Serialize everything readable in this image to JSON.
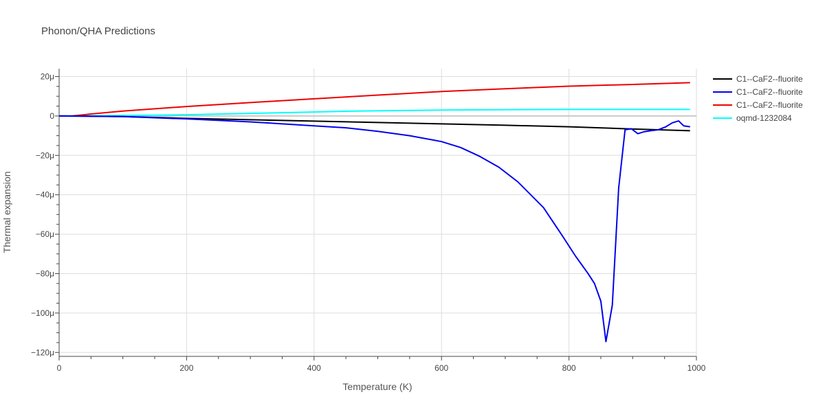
{
  "chart_data": {
    "type": "line",
    "title": "Phonon/QHA Predictions",
    "xlabel": "Temperature (K)",
    "ylabel": "Thermal expansion",
    "xlim": [
      0,
      1000
    ],
    "ylim": [
      -122,
      24
    ],
    "x_ticks": [
      0,
      200,
      400,
      600,
      800,
      1000
    ],
    "x_tick_labels": [
      "0",
      "200",
      "400",
      "600",
      "800",
      "1000"
    ],
    "y_ticks": [
      20,
      0,
      -20,
      -40,
      -60,
      -80,
      -100,
      -120
    ],
    "y_tick_labels": [
      "20μ",
      "0",
      "−20μ",
      "−40μ",
      "−60μ",
      "−80μ",
      "−100μ",
      "−120μ"
    ],
    "grid": true,
    "legend_position": "top-right outside",
    "series": [
      {
        "name": "C1--CaF2--fluorite",
        "color": "#000000",
        "x": [
          0,
          100,
          200,
          300,
          400,
          500,
          600,
          700,
          800,
          900,
          990
        ],
        "y": [
          0,
          -0.3,
          -1.2,
          -1.9,
          -2.6,
          -3.3,
          -4.0,
          -4.7,
          -5.5,
          -6.6,
          -7.5
        ]
      },
      {
        "name": "C1--CaF2--fluorite",
        "color": "#0000ee",
        "x": [
          0,
          100,
          200,
          300,
          400,
          450,
          500,
          550,
          600,
          630,
          660,
          690,
          720,
          760,
          790,
          810,
          830,
          840,
          850,
          858,
          868,
          878,
          888,
          898,
          908,
          918,
          928,
          940,
          952,
          962,
          972,
          980,
          990
        ],
        "y": [
          0,
          -0.3,
          -1.5,
          -3.0,
          -5.0,
          -6.0,
          -7.8,
          -10.0,
          -13.0,
          -16.0,
          -20.5,
          -26.0,
          -33.5,
          -46.5,
          -61.0,
          -71.0,
          -80.0,
          -85.0,
          -94.0,
          -114.5,
          -96.0,
          -36.5,
          -7.0,
          -6.5,
          -9.0,
          -8.0,
          -7.5,
          -7.0,
          -5.5,
          -3.5,
          -2.5,
          -5.0,
          -5.5
        ]
      },
      {
        "name": "C1--CaF2--fluorite",
        "color": "#ee0000",
        "x": [
          0,
          20,
          50,
          100,
          200,
          300,
          400,
          500,
          600,
          700,
          800,
          900,
          990
        ],
        "y": [
          0,
          0,
          1.0,
          2.5,
          4.8,
          6.8,
          8.7,
          10.6,
          12.4,
          13.8,
          15.1,
          16.0,
          16.9
        ]
      },
      {
        "name": "oqmd-1232084",
        "color": "#00ffff",
        "x": [
          0,
          100,
          200,
          300,
          400,
          450,
          500,
          600,
          700,
          800,
          900,
          990
        ],
        "y": [
          0,
          0.2,
          0.6,
          1.3,
          2.0,
          2.4,
          2.6,
          3.0,
          3.2,
          3.3,
          3.3,
          3.3
        ]
      }
    ]
  }
}
